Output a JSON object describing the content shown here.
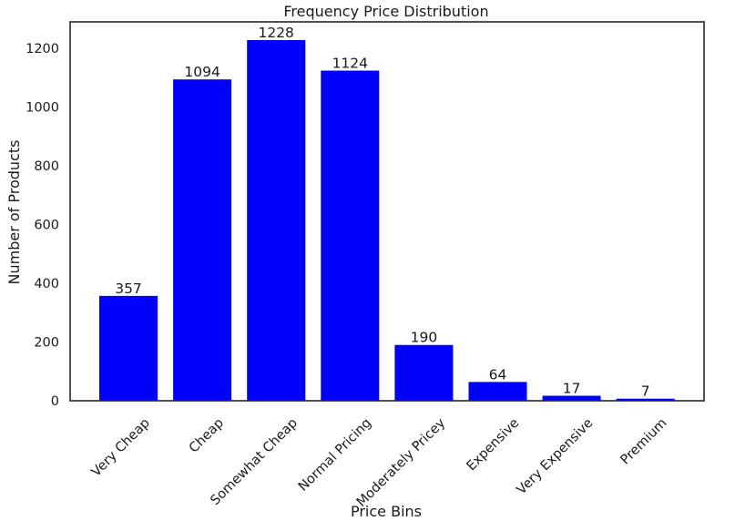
{
  "chart_data": {
    "type": "bar",
    "title": "Frequency Price Distribution",
    "xlabel": "Price Bins",
    "ylabel": "Number of Products",
    "categories": [
      "Very Cheap",
      "Cheap",
      "Somewhat Cheap",
      "Normal Pricing",
      "Moderately Pricey",
      "Expensive",
      "Very Expensive",
      "Premium"
    ],
    "values": [
      357,
      1094,
      1228,
      1124,
      190,
      64,
      17,
      7
    ],
    "data_labels": [
      "357",
      "1094",
      "1228",
      "1124",
      "190",
      "64",
      "17",
      "7"
    ],
    "ylim": [
      0,
      1290
    ],
    "yticks": [
      0,
      200,
      400,
      600,
      800,
      1000,
      1200
    ],
    "ytick_labels": [
      "0",
      "200",
      "400",
      "600",
      "800",
      "1000",
      "1200"
    ],
    "bar_color": "#0000ff",
    "grid": false,
    "xtick_rotation_deg": 45
  }
}
